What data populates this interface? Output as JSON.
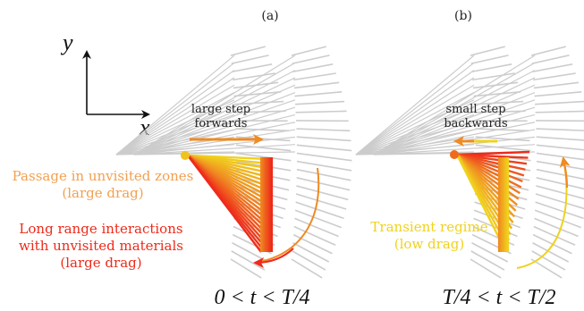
{
  "panels": [
    {
      "id": "a",
      "label": "(a)",
      "step_note_line1": "large step",
      "step_note_line2": "forwards",
      "time_range": "0 < t < T/4",
      "annotations": [
        {
          "lines": [
            "Passage in unvisited zones",
            "(large drag)"
          ],
          "color": "#f2a050"
        },
        {
          "lines": [
            "Long range interactions",
            "with unvisited materials",
            "(large drag)"
          ],
          "color": "#ee2a1a"
        }
      ]
    },
    {
      "id": "b",
      "label": "(b)",
      "step_note_line1": "small step",
      "step_note_line2": "backwards",
      "time_range": "T/4 < t < T/2",
      "annotations": [
        {
          "lines": [
            "Transient regime",
            "(low drag)"
          ],
          "color": "#f0d21c"
        }
      ]
    }
  ],
  "axes": {
    "x_label": "x",
    "y_label": "y"
  },
  "colors": {
    "ghost_strokes": "#cccccc",
    "orange": "#f08a22",
    "red": "#ee2a1a",
    "yellow": "#f0d21c",
    "text": "#222222"
  }
}
